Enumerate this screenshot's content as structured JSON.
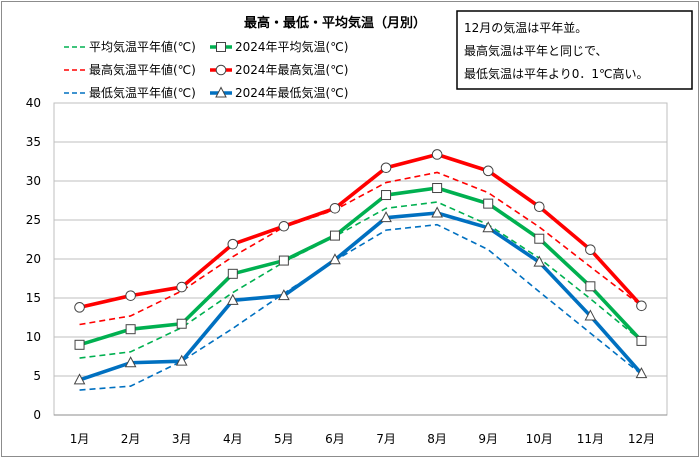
{
  "chart_data": {
    "type": "line",
    "title": "最高・最低・平均気温（月別）",
    "categories": [
      "1月",
      "2月",
      "3月",
      "4月",
      "5月",
      "6月",
      "7月",
      "8月",
      "9月",
      "10月",
      "11月",
      "12月"
    ],
    "y_ticks": [
      "0",
      "5",
      "10",
      "15",
      "20",
      "25",
      "30",
      "35",
      "40"
    ],
    "ylim": [
      0,
      40
    ],
    "grid": true,
    "legend_position": "top-left",
    "annotation": [
      "12月の気温は平年並。",
      "最高気温は平年と同じで、",
      "最低気温は平年より0．1℃高い。"
    ],
    "series": [
      {
        "name": "平均気温平年値(℃)",
        "style": "dashed",
        "color": "#00b050",
        "marker": "none",
        "values": [
          7.3,
          8.1,
          11.2,
          15.7,
          19.6,
          22.9,
          26.5,
          27.3,
          24.4,
          20.1,
          14.9,
          9.5
        ]
      },
      {
        "name": "2024年平均気温(℃)",
        "style": "solid",
        "color": "#00b050",
        "marker": "square",
        "values": [
          9.0,
          11.0,
          11.7,
          18.1,
          19.8,
          23.0,
          28.2,
          29.1,
          27.1,
          22.6,
          16.5,
          9.5
        ]
      },
      {
        "name": "最高気温平年値(℃)",
        "style": "dashed",
        "color": "#ff0000",
        "marker": "none",
        "values": [
          11.6,
          12.7,
          15.9,
          20.3,
          24.1,
          26.3,
          29.8,
          31.1,
          28.5,
          24.1,
          19.0,
          14.0
        ]
      },
      {
        "name": "2024年最高気温(℃)",
        "style": "solid",
        "color": "#ff0000",
        "marker": "circle",
        "values": [
          13.8,
          15.3,
          16.4,
          21.9,
          24.2,
          26.5,
          31.7,
          33.4,
          31.3,
          26.7,
          21.2,
          14.0
        ]
      },
      {
        "name": "最低気温平年値(℃)",
        "style": "dashed",
        "color": "#0070c0",
        "marker": "none",
        "values": [
          3.2,
          3.7,
          6.9,
          11.1,
          15.6,
          19.8,
          23.7,
          24.4,
          21.2,
          15.8,
          10.5,
          5.2
        ]
      },
      {
        "name": "2024年最低気温(℃)",
        "style": "solid",
        "color": "#0070c0",
        "marker": "triangle",
        "values": [
          4.5,
          6.7,
          6.9,
          14.7,
          15.3,
          19.9,
          25.3,
          25.9,
          24.0,
          19.6,
          12.7,
          5.3
        ]
      }
    ]
  }
}
